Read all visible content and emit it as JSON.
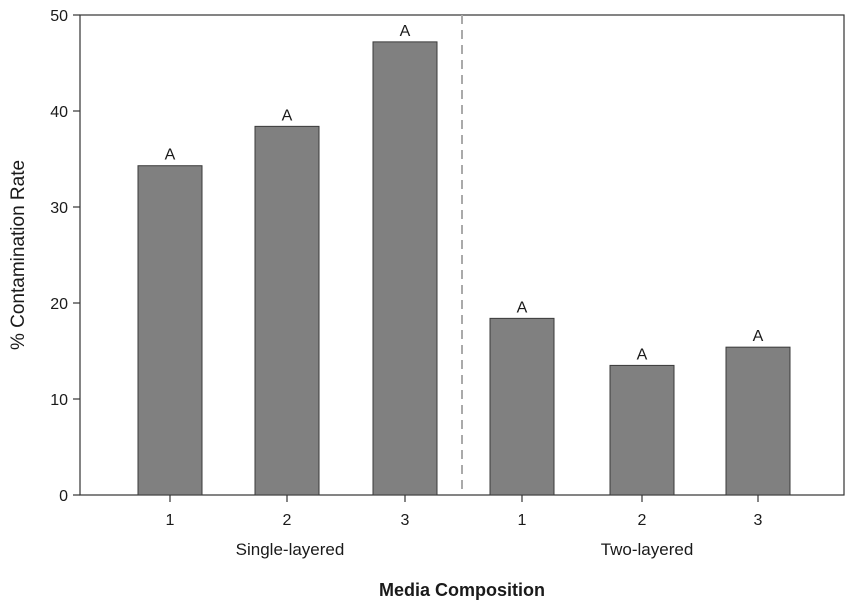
{
  "chart_data": {
    "type": "bar",
    "title": "",
    "xlabel": "Media Composition",
    "ylabel": "% Contamination Rate",
    "ylim": [
      0,
      50
    ],
    "yticks": [
      0,
      10,
      20,
      30,
      40,
      50
    ],
    "grid": false,
    "groups": [
      {
        "label": "Single-layered",
        "categories": [
          "1",
          "2",
          "3"
        ],
        "values": [
          34.3,
          38.4,
          47.2
        ],
        "annotations": [
          "A",
          "A",
          "A"
        ]
      },
      {
        "label": "Two-layered",
        "categories": [
          "1",
          "2",
          "3"
        ],
        "values": [
          18.4,
          13.5,
          15.4
        ],
        "annotations": [
          "A",
          "A",
          "A"
        ]
      }
    ],
    "bar_color": "#808080",
    "divider_color": "#aaaaaa"
  }
}
